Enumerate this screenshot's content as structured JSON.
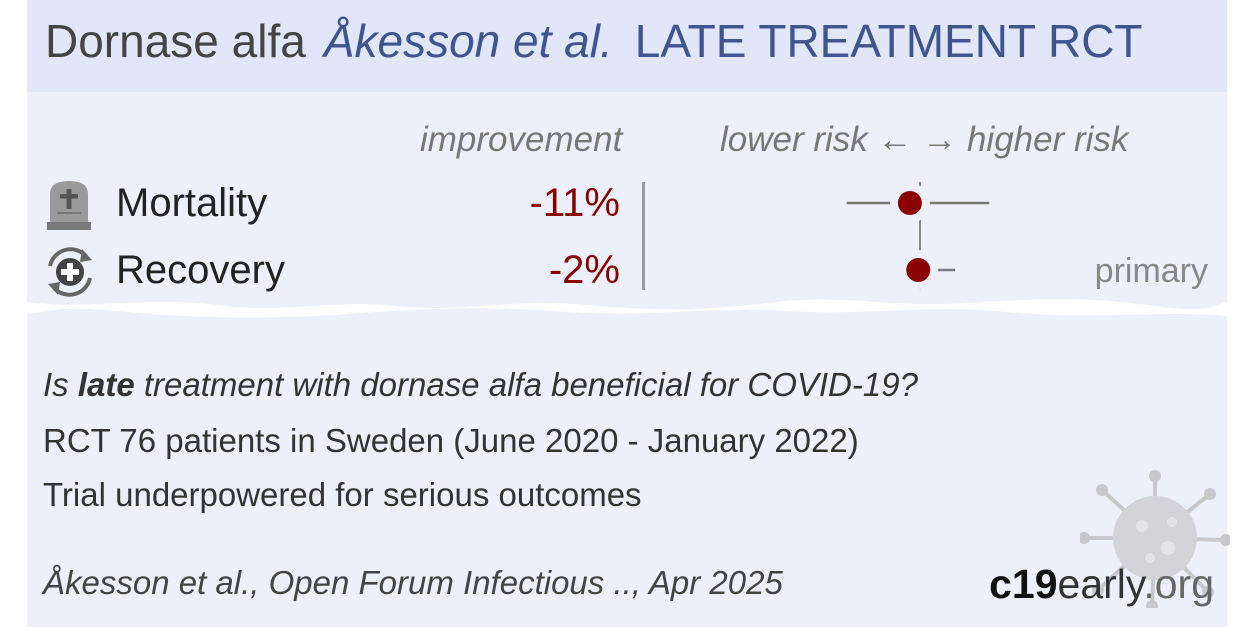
{
  "header": {
    "drug": "Dornase alfa",
    "authors": "Åkesson et al.",
    "trial_type": "LATE TREATMENT RCT"
  },
  "columns": {
    "improvement": "improvement",
    "risk_axis": "lower risk ← → higher risk"
  },
  "outcomes": [
    {
      "label": "Mortality",
      "improvement": "-11%",
      "icon": "tombstone-icon"
    },
    {
      "label": "Recovery",
      "improvement": "-2%",
      "icon": "recovery-cycle-icon",
      "annotation": "primary"
    }
  ],
  "chart_data": {
    "type": "scatter",
    "description_axis": "lower risk ← → higher risk",
    "null_value": 1.0,
    "series": [
      {
        "category": "Mortality",
        "point": 0.89,
        "ci_low": 0.43,
        "ci_high": 2.22
      },
      {
        "category": "Recovery",
        "point": 0.98,
        "ci_low": 0.79,
        "ci_high": 1.5
      }
    ],
    "point_color": "#8b0000"
  },
  "summary": {
    "question_pre": "Is ",
    "question_bold": "late",
    "question_post": " treatment with dornase alfa beneficial for COVID-19?",
    "line2": "RCT 76 patients in Sweden (June 2020 - January 2022)",
    "line3": "Trial underpowered for serious outcomes"
  },
  "citation": "Åkesson et al., Open Forum Infectious .., Apr 2025",
  "brand": {
    "part1": "c19",
    "part2": "early",
    "part3": ".org"
  },
  "colors": {
    "accent": "#3e5590",
    "negative": "#8b0000",
    "header_bg": "#e2e6f9",
    "card_bg": "#edf0fb"
  }
}
